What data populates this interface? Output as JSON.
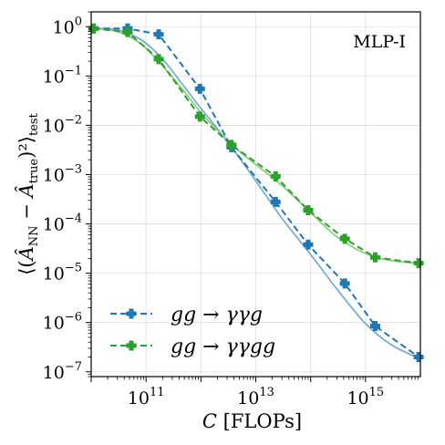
{
  "chart_data": {
    "type": "line",
    "annotation": "MLP-I",
    "xlabel": "C [FLOPs]",
    "ylabel": "⟨(Â_NN − Â_true)²⟩_test",
    "xscale": "log",
    "yscale": "log",
    "xlim": [
      10000000000.0,
      1e+16
    ],
    "ylim": [
      8e-08,
      2
    ],
    "x_ticks": [
      {
        "value": 100000000000.0,
        "base": "10",
        "exp": "11"
      },
      {
        "value": 10000000000000.0,
        "base": "10",
        "exp": "13"
      },
      {
        "value": 1000000000000000.0,
        "base": "10",
        "exp": "15"
      }
    ],
    "y_ticks": [
      {
        "value": 1,
        "base": "10",
        "exp": "0"
      },
      {
        "value": 0.1,
        "base": "10",
        "exp": "−1"
      },
      {
        "value": 0.01,
        "base": "10",
        "exp": "−2"
      },
      {
        "value": 0.001,
        "base": "10",
        "exp": "−3"
      },
      {
        "value": 0.0001,
        "base": "10",
        "exp": "−4"
      },
      {
        "value": 1e-05,
        "base": "10",
        "exp": "−5"
      },
      {
        "value": 1e-06,
        "base": "10",
        "exp": "−6"
      },
      {
        "value": 1e-07,
        "base": "10",
        "exp": "−7"
      }
    ],
    "grid": true,
    "legend_position": "lower-left",
    "series": [
      {
        "name": "gg → γγg",
        "color": "#1f77b4",
        "fit_color": "#74a9cf",
        "x": [
          11000000000.0,
          46000000000.0,
          170000000000.0,
          960000000000.0,
          3600000000000.0,
          23000000000000.0,
          90000000000000.0,
          420000000000000.0,
          1500000000000000.0,
          9300000000000000.0
        ],
        "y": [
          0.92,
          0.92,
          0.7,
          0.055,
          0.0036,
          0.00028,
          3.8e-05,
          6.2e-06,
          8.5e-07,
          2e-07
        ],
        "fit": [
          [
            11000000000.0,
            0.93
          ],
          [
            30000000000.0,
            0.86
          ],
          [
            80000000000.0,
            0.55
          ],
          [
            200000000000.0,
            0.22
          ],
          [
            500000000000.0,
            0.06
          ],
          [
            1000000000000.0,
            0.022
          ],
          [
            2000000000000.0,
            0.0085
          ],
          [
            5000000000000.0,
            0.0022
          ],
          [
            10000000000000.0,
            0.00075
          ],
          [
            30000000000000.0,
            0.00013
          ],
          [
            100000000000000.0,
            2.4e-05
          ],
          [
            300000000000000.0,
            4.8e-06
          ],
          [
            1000000000000000.0,
            9.5e-07
          ],
          [
            3000000000000000.0,
            3.5e-07
          ],
          [
            9300000000000000.0,
            1.9e-07
          ]
        ]
      },
      {
        "name": "gg → γγgg",
        "color": "#2ca02c",
        "fit_color": "#88cc77",
        "x": [
          11000000000.0,
          46000000000.0,
          170000000000.0,
          960000000000.0,
          3600000000000.0,
          23000000000000.0,
          90000000000000.0,
          420000000000000.0,
          1500000000000000.0,
          9300000000000000.0
        ],
        "y": [
          0.92,
          0.78,
          0.22,
          0.015,
          0.004,
          0.00092,
          0.00019,
          5e-05,
          2.1e-05,
          1.6e-05
        ],
        "fit": [
          [
            11000000000.0,
            0.92
          ],
          [
            30000000000.0,
            0.8
          ],
          [
            80000000000.0,
            0.45
          ],
          [
            200000000000.0,
            0.16
          ],
          [
            500000000000.0,
            0.048
          ],
          [
            1000000000000.0,
            0.018
          ],
          [
            2000000000000.0,
            0.008
          ],
          [
            5000000000000.0,
            0.003
          ],
          [
            10000000000000.0,
            0.0016
          ],
          [
            30000000000000.0,
            0.0006
          ],
          [
            100000000000000.0,
            0.00017
          ],
          [
            300000000000000.0,
            5.5e-05
          ],
          [
            1000000000000000.0,
            2.5e-05
          ],
          [
            3000000000000000.0,
            1.8e-05
          ],
          [
            9300000000000000.0,
            1.6e-05
          ]
        ]
      }
    ]
  }
}
